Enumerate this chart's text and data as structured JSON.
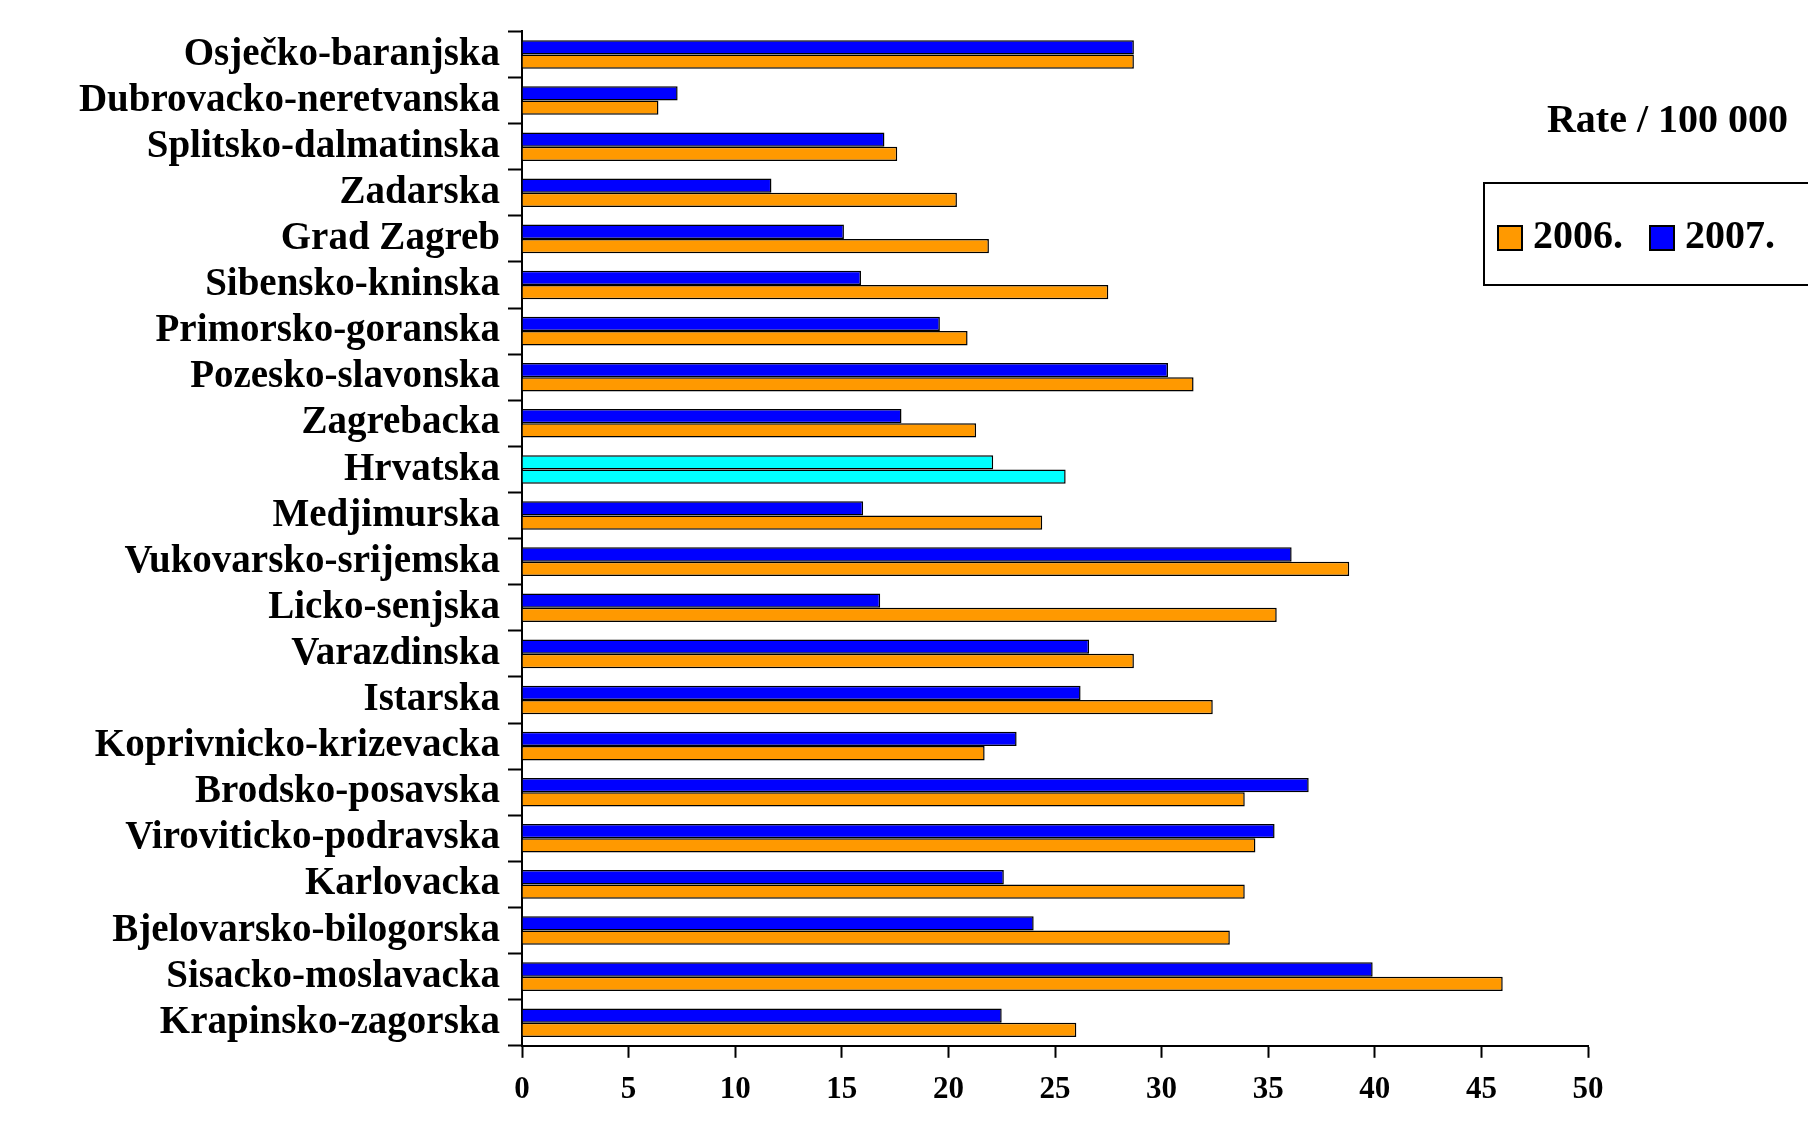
{
  "chart_data": {
    "type": "bar",
    "orientation": "horizontal",
    "ylabel": null,
    "title": "Rate / 100 000",
    "categories": [
      "Osječko-baranjska",
      "Dubrovacko-neretvanska",
      "Splitsko-dalmatinska",
      "Zadarska",
      "Grad Zagreb",
      "Sibensko-kninska",
      "Primorsko-goranska",
      "Pozesko-slavonska",
      "Zagrebacka",
      "Hrvatska",
      "Medjimurska",
      "Vukovarsko-srijemska",
      "Licko-senjska",
      "Varazdinska",
      "Istarska",
      "Koprivnicko-krizevacka",
      "Brodsko-posavska",
      "Viroviticko-podravska",
      "Karlovacka",
      "Bjelovarsko-bilogorska",
      "Sisacko-moslavacka",
      "Krapinsko-zagorska"
    ],
    "series": [
      {
        "name": "2007.",
        "color": "#0000ff",
        "colors": [
          "#0000ff",
          "#0000ff",
          "#0000ff",
          "#0000ff",
          "#0000ff",
          "#0000ff",
          "#0000ff",
          "#0000ff",
          "#0000ff",
          "#00ffff",
          "#0000ff",
          "#0000ff",
          "#0000ff",
          "#0000ff",
          "#0000ff",
          "#0000ff",
          "#0000ff",
          "#0000ff",
          "#0000ff",
          "#0000ff",
          "#0000ff",
          "#0000ff"
        ],
        "values": [
          28.7,
          7.3,
          17.0,
          11.7,
          15.1,
          15.9,
          19.6,
          30.3,
          17.8,
          22.1,
          16.0,
          36.1,
          16.8,
          26.6,
          26.2,
          23.2,
          36.9,
          35.3,
          22.6,
          24.0,
          39.9,
          22.5
        ]
      },
      {
        "name": "2006.",
        "color": "#ff9900",
        "colors": [
          "#ff9900",
          "#ff9900",
          "#ff9900",
          "#ff9900",
          "#ff9900",
          "#ff9900",
          "#ff9900",
          "#ff9900",
          "#ff9900",
          "#00ffff",
          "#ff9900",
          "#ff9900",
          "#ff9900",
          "#ff9900",
          "#ff9900",
          "#ff9900",
          "#ff9900",
          "#ff9900",
          "#ff9900",
          "#ff9900",
          "#ff9900",
          "#ff9900"
        ],
        "values": [
          28.7,
          6.4,
          17.6,
          20.4,
          21.9,
          27.5,
          20.9,
          31.5,
          21.3,
          25.5,
          24.4,
          38.8,
          35.4,
          28.7,
          32.4,
          21.7,
          33.9,
          34.4,
          33.9,
          33.2,
          46.0,
          26.0
        ]
      }
    ],
    "xlim": [
      0,
      50
    ],
    "xticks": [
      0,
      5,
      10,
      15,
      20,
      25,
      30,
      35,
      40,
      45,
      50
    ],
    "grid": false,
    "legend": "top right"
  }
}
